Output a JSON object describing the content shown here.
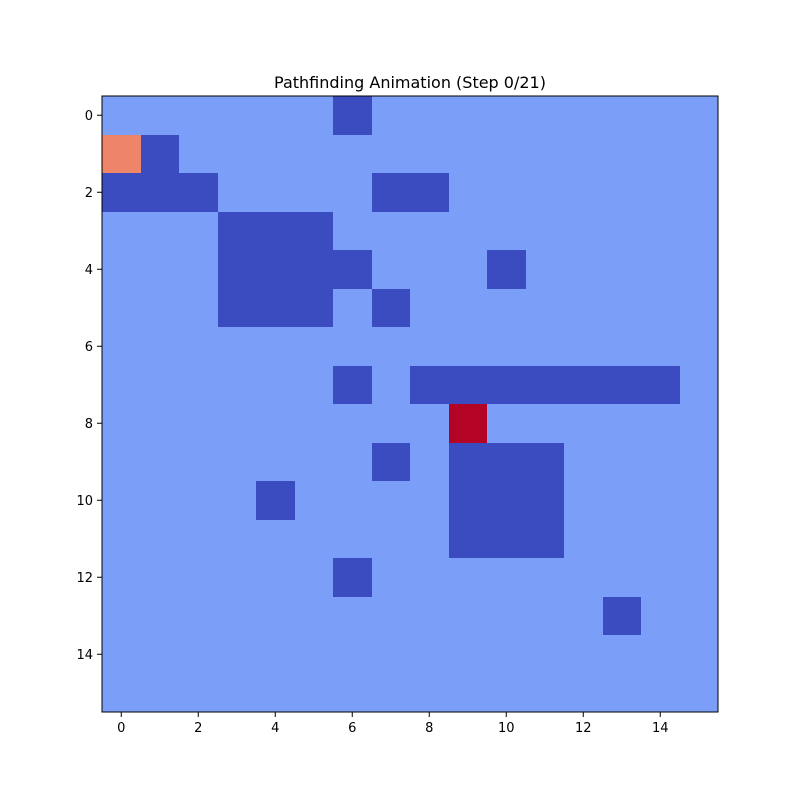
{
  "chart_data": {
    "type": "heatmap",
    "title": "Pathfinding Animation (Step 0/21)",
    "xlabel": "",
    "ylabel": "",
    "xlim": [
      -0.5,
      15.5
    ],
    "ylim": [
      15.5,
      -0.5
    ],
    "x_ticks": [
      0,
      2,
      4,
      6,
      8,
      10,
      12,
      14
    ],
    "y_ticks": [
      0,
      2,
      4,
      6,
      8,
      10,
      12,
      14
    ],
    "grid": false,
    "colormap": "coolwarm",
    "legend": "none",
    "cell_colors": {
      "0": "#7b9ff9",
      "1": "#3b4cc0",
      "2": "#ee8468",
      "3": "#b40426"
    },
    "grid_values": [
      [
        0,
        0,
        0,
        0,
        0,
        0,
        1,
        0,
        0,
        0,
        0,
        0,
        0,
        0,
        0,
        0
      ],
      [
        2,
        1,
        0,
        0,
        0,
        0,
        0,
        0,
        0,
        0,
        0,
        0,
        0,
        0,
        0,
        0
      ],
      [
        1,
        1,
        1,
        0,
        0,
        0,
        0,
        1,
        1,
        0,
        0,
        0,
        0,
        0,
        0,
        0
      ],
      [
        0,
        0,
        0,
        1,
        1,
        1,
        0,
        0,
        0,
        0,
        0,
        0,
        0,
        0,
        0,
        0
      ],
      [
        0,
        0,
        0,
        1,
        1,
        1,
        1,
        0,
        0,
        0,
        1,
        0,
        0,
        0,
        0,
        0
      ],
      [
        0,
        0,
        0,
        1,
        1,
        1,
        0,
        1,
        0,
        0,
        0,
        0,
        0,
        0,
        0,
        0
      ],
      [
        0,
        0,
        0,
        0,
        0,
        0,
        0,
        0,
        0,
        0,
        0,
        0,
        0,
        0,
        0,
        0
      ],
      [
        0,
        0,
        0,
        0,
        0,
        0,
        1,
        0,
        1,
        1,
        1,
        1,
        1,
        1,
        1,
        0
      ],
      [
        0,
        0,
        0,
        0,
        0,
        0,
        0,
        0,
        0,
        3,
        0,
        0,
        0,
        0,
        0,
        0
      ],
      [
        0,
        0,
        0,
        0,
        0,
        0,
        0,
        1,
        0,
        1,
        1,
        1,
        0,
        0,
        0,
        0
      ],
      [
        0,
        0,
        0,
        0,
        1,
        0,
        0,
        0,
        0,
        1,
        1,
        1,
        0,
        0,
        0,
        0
      ],
      [
        0,
        0,
        0,
        0,
        0,
        0,
        0,
        0,
        0,
        1,
        1,
        1,
        0,
        0,
        0,
        0
      ],
      [
        0,
        0,
        0,
        0,
        0,
        0,
        1,
        0,
        0,
        0,
        0,
        0,
        0,
        0,
        0,
        0
      ],
      [
        0,
        0,
        0,
        0,
        0,
        0,
        0,
        0,
        0,
        0,
        0,
        0,
        0,
        1,
        0,
        0
      ],
      [
        0,
        0,
        0,
        0,
        0,
        0,
        0,
        0,
        0,
        0,
        0,
        0,
        0,
        0,
        0,
        0
      ],
      [
        0,
        0,
        0,
        0,
        0,
        0,
        0,
        0,
        0,
        0,
        0,
        0,
        0,
        0,
        0,
        0
      ]
    ]
  }
}
